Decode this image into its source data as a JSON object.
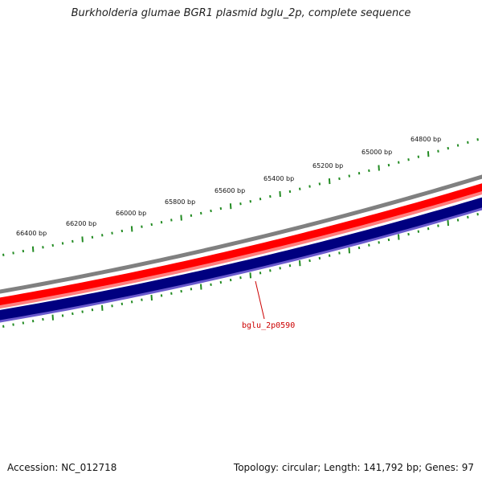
{
  "title": "Burkholderia glumae BGR1 plasmid bglu_2p, complete sequence",
  "footer": {
    "accession": "Accession: NC_012718",
    "summary": "Topology: circular; Length: 141,792 bp; Genes: 97"
  },
  "colors": {
    "backbone": "#808080",
    "forward_strand": "#ff0000",
    "forward_strand_inner": "#ff7f7f",
    "reverse_strand": "#000080",
    "reverse_strand_inner": "#6a5acd",
    "ticks": "#228b22",
    "gene_label": "#cc0000"
  },
  "scale_labels": [
    "66400 bp",
    "66200 bp",
    "66000 bp",
    "65800 bp",
    "65600 bp",
    "65400 bp",
    "65200 bp",
    "65000 bp",
    "64800 bp"
  ],
  "gene_labels": [
    "bglu_2p0590"
  ]
}
